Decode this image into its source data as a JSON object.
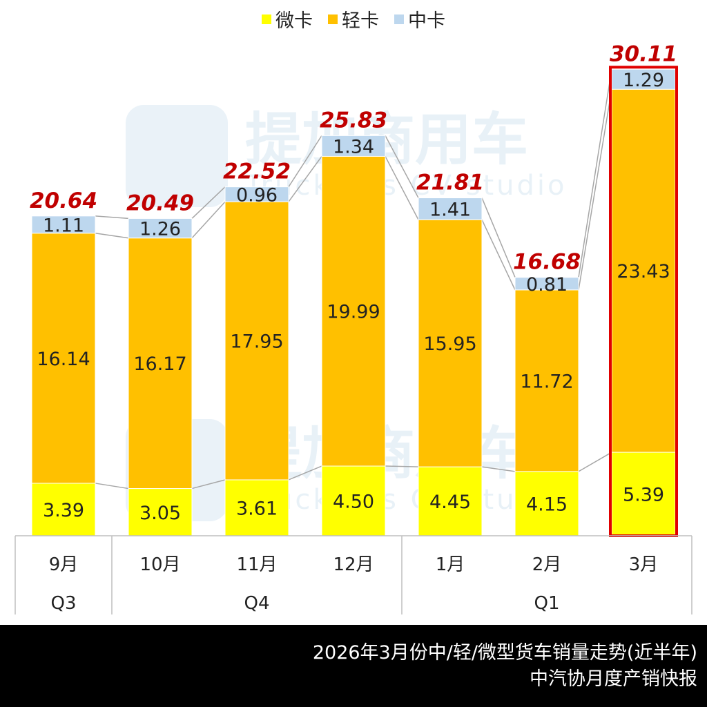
{
  "legend": {
    "items": [
      {
        "label": "微卡",
        "color": "#ffff00"
      },
      {
        "label": "轻卡",
        "color": "#ffc000"
      },
      {
        "label": "中卡",
        "color": "#bdd7ee"
      }
    ]
  },
  "watermark": {
    "main": "提加商用车",
    "sub": "TruckPlus CV studio"
  },
  "footer": {
    "line1": "2026年3月份中/轻/微型货车销量走势(近半年)",
    "line2": "中汽协月度产销快报"
  },
  "chart_data": {
    "type": "bar",
    "stacked": true,
    "categories": [
      "9月",
      "10月",
      "11月",
      "12月",
      "1月",
      "2月",
      "3月"
    ],
    "quarters": [
      {
        "label": "Q3",
        "span": 1
      },
      {
        "label": "Q4",
        "span": 3
      },
      {
        "label": "Q1",
        "span": 3
      }
    ],
    "series": [
      {
        "name": "微卡",
        "color": "#ffff00",
        "values": [
          3.39,
          3.05,
          3.61,
          4.5,
          4.45,
          4.15,
          5.39
        ],
        "labels": [
          "3.39",
          "3.05",
          "3.61",
          "4.50",
          "4.45",
          "4.15",
          "5.39"
        ]
      },
      {
        "name": "轻卡",
        "color": "#ffc000",
        "values": [
          16.14,
          16.17,
          17.95,
          19.99,
          15.95,
          11.72,
          23.43
        ],
        "labels": [
          "16.14",
          "16.17",
          "17.95",
          "19.99",
          "15.95",
          "11.72",
          "23.43"
        ]
      },
      {
        "name": "中卡",
        "color": "#bdd7ee",
        "values": [
          1.11,
          1.26,
          0.96,
          1.34,
          1.41,
          0.81,
          1.29
        ],
        "labels": [
          "1.11",
          "1.26",
          "0.96",
          "1.34",
          "1.41",
          "0.81",
          "1.29"
        ]
      }
    ],
    "totals": [
      "20.64",
      "20.49",
      "22.52",
      "25.83",
      "21.81",
      "16.68",
      "30.11"
    ],
    "highlight_index": 6,
    "highlight_color": "#e00000",
    "ylim": [
      0,
      32
    ],
    "grid": false,
    "legend_position": "top"
  }
}
